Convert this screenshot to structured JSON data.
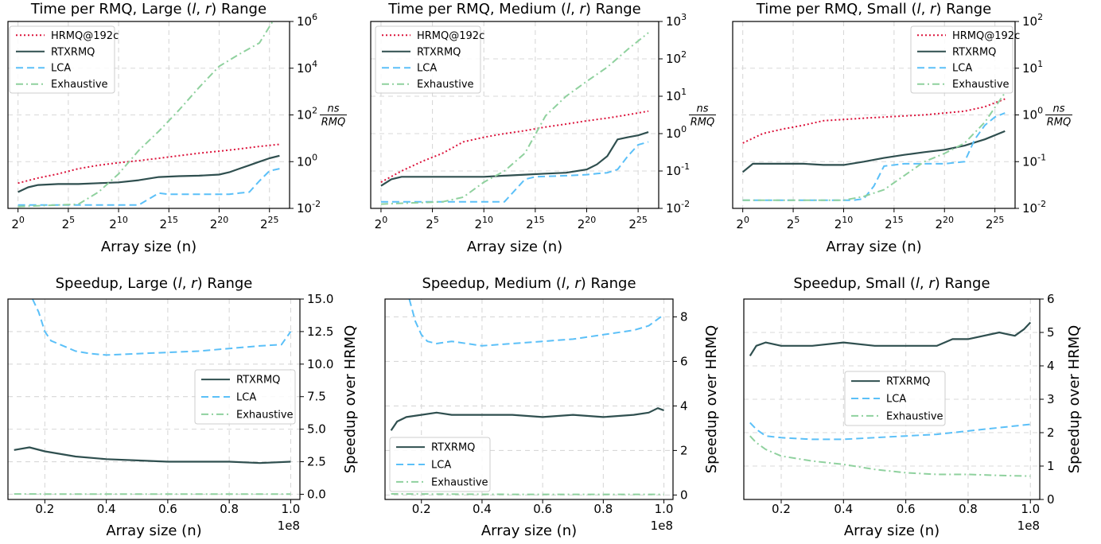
{
  "chart_data": [
    {
      "type": "line",
      "title": "Time per RMQ, Large (l, r) Range",
      "xlabel": "Array size (n)",
      "ylabel": "ns / RMQ",
      "yscale": "log",
      "xscale": "log2",
      "xticks": [
        "2^0",
        "2^5",
        "2^10",
        "2^15",
        "2^20",
        "2^25"
      ],
      "yticks": [
        "10^-2",
        "10^0",
        "10^2",
        "10^4",
        "10^6"
      ],
      "xlim": [
        -1,
        27
      ],
      "ylim": [
        0.01,
        1000000
      ],
      "legend": "top-left",
      "grid": true,
      "series": [
        {
          "name": "HRMQ@192c",
          "color": "#dc143c",
          "style": "dotted",
          "x": [
            0,
            2,
            4,
            6,
            8,
            10,
            12,
            14,
            16,
            18,
            20,
            22,
            24,
            26
          ],
          "y": [
            0.12,
            0.2,
            0.3,
            0.5,
            0.7,
            0.9,
            1.1,
            1.4,
            1.8,
            2.3,
            2.8,
            3.5,
            4.5,
            5.5
          ]
        },
        {
          "name": "RTXRMQ",
          "color": "#2f4f4f",
          "style": "solid",
          "x": [
            0,
            1,
            2,
            4,
            6,
            8,
            10,
            12,
            14,
            16,
            18,
            20,
            21,
            22,
            23,
            24,
            25,
            26
          ],
          "y": [
            0.05,
            0.08,
            0.1,
            0.11,
            0.11,
            0.12,
            0.13,
            0.16,
            0.22,
            0.24,
            0.25,
            0.28,
            0.35,
            0.5,
            0.7,
            1.0,
            1.4,
            1.8
          ]
        },
        {
          "name": "LCA",
          "color": "#5bc0f8",
          "style": "dashed",
          "x": [
            0,
            4,
            8,
            12,
            13,
            14,
            15,
            18,
            20,
            21,
            22,
            23,
            24,
            25,
            26
          ],
          "y": [
            0.014,
            0.014,
            0.014,
            0.014,
            0.025,
            0.045,
            0.04,
            0.04,
            0.04,
            0.04,
            0.045,
            0.05,
            0.15,
            0.4,
            0.5
          ]
        },
        {
          "name": "Exhaustive",
          "color": "#8fd19e",
          "style": "dashdot",
          "x": [
            0,
            6,
            8,
            10,
            12,
            14,
            16,
            18,
            20,
            22,
            24,
            26
          ],
          "y": [
            0.012,
            0.015,
            0.05,
            0.3,
            3,
            20,
            160,
            1500,
            12000,
            40000,
            120000,
            3000000
          ]
        }
      ]
    },
    {
      "type": "line",
      "title": "Time per RMQ, Medium (l, r) Range",
      "xlabel": "Array size (n)",
      "ylabel": "ns / RMQ",
      "yscale": "log",
      "xscale": "log2",
      "xticks": [
        "2^0",
        "2^5",
        "2^10",
        "2^15",
        "2^20",
        "2^25"
      ],
      "yticks": [
        "10^-2",
        "10^-1",
        "10^0",
        "10^1",
        "10^2",
        "10^3"
      ],
      "xlim": [
        -1,
        27
      ],
      "ylim": [
        0.01,
        1000
      ],
      "legend": "top-left",
      "grid": true,
      "series": [
        {
          "name": "HRMQ@192c",
          "color": "#dc143c",
          "style": "dotted",
          "x": [
            0,
            2,
            4,
            6,
            8,
            10,
            12,
            14,
            16,
            18,
            20,
            22,
            24,
            26
          ],
          "y": [
            0.05,
            0.1,
            0.18,
            0.3,
            0.6,
            0.8,
            1.0,
            1.2,
            1.5,
            1.8,
            2.2,
            2.6,
            3.2,
            4.0
          ]
        },
        {
          "name": "RTXRMQ",
          "color": "#2f4f4f",
          "style": "solid",
          "x": [
            0,
            1,
            2,
            4,
            6,
            8,
            10,
            12,
            14,
            16,
            18,
            20,
            21,
            22,
            23,
            24,
            25,
            26
          ],
          "y": [
            0.04,
            0.06,
            0.07,
            0.07,
            0.07,
            0.07,
            0.07,
            0.075,
            0.08,
            0.085,
            0.09,
            0.11,
            0.15,
            0.25,
            0.7,
            0.8,
            0.9,
            1.1
          ]
        },
        {
          "name": "LCA",
          "color": "#5bc0f8",
          "style": "dashed",
          "x": [
            0,
            4,
            8,
            12,
            13,
            14,
            15,
            18,
            20,
            21,
            22,
            23,
            24,
            25,
            26
          ],
          "y": [
            0.015,
            0.015,
            0.015,
            0.015,
            0.03,
            0.06,
            0.07,
            0.075,
            0.08,
            0.085,
            0.09,
            0.11,
            0.25,
            0.5,
            0.6
          ]
        },
        {
          "name": "Exhaustive",
          "color": "#8fd19e",
          "style": "dashdot",
          "x": [
            0,
            6,
            8,
            10,
            12,
            14,
            16,
            18,
            20,
            22,
            24,
            26
          ],
          "y": [
            0.013,
            0.015,
            0.02,
            0.05,
            0.1,
            0.3,
            3,
            10,
            25,
            60,
            180,
            500
          ]
        }
      ]
    },
    {
      "type": "line",
      "title": "Time per RMQ, Small (l, r) Range",
      "xlabel": "Array size (n)",
      "ylabel": "ns / RMQ",
      "yscale": "log",
      "xscale": "log2",
      "xticks": [
        "2^0",
        "2^5",
        "2^10",
        "2^15",
        "2^20",
        "2^25"
      ],
      "yticks": [
        "10^-2",
        "10^-1",
        "10^0",
        "10^1",
        "10^2"
      ],
      "xlim": [
        -1,
        27
      ],
      "ylim": [
        0.01,
        100
      ],
      "legend": "top-right",
      "grid": true,
      "series": [
        {
          "name": "HRMQ@192c",
          "color": "#dc143c",
          "style": "dotted",
          "x": [
            0,
            2,
            4,
            6,
            8,
            10,
            12,
            14,
            16,
            18,
            20,
            22,
            24,
            26
          ],
          "y": [
            0.25,
            0.4,
            0.5,
            0.6,
            0.75,
            0.8,
            0.85,
            0.9,
            0.95,
            1.0,
            1.1,
            1.2,
            1.5,
            2.2
          ]
        },
        {
          "name": "RTXRMQ",
          "color": "#2f4f4f",
          "style": "solid",
          "x": [
            0,
            1,
            2,
            4,
            6,
            8,
            10,
            12,
            14,
            16,
            18,
            20,
            22,
            24,
            26
          ],
          "y": [
            0.06,
            0.09,
            0.09,
            0.09,
            0.09,
            0.085,
            0.085,
            0.1,
            0.12,
            0.14,
            0.16,
            0.18,
            0.22,
            0.3,
            0.45
          ]
        },
        {
          "name": "LCA",
          "color": "#5bc0f8",
          "style": "dashed",
          "x": [
            0,
            4,
            8,
            10,
            11,
            12,
            13,
            14,
            16,
            18,
            20,
            21,
            22,
            23,
            24,
            25,
            26
          ],
          "y": [
            0.015,
            0.015,
            0.015,
            0.015,
            0.015,
            0.016,
            0.03,
            0.08,
            0.09,
            0.09,
            0.09,
            0.095,
            0.1,
            0.3,
            0.6,
            0.9,
            1.1
          ]
        },
        {
          "name": "Exhaustive",
          "color": "#8fd19e",
          "style": "dashdot",
          "x": [
            0,
            6,
            10,
            12,
            14,
            16,
            18,
            20,
            22,
            24,
            26
          ],
          "y": [
            0.015,
            0.015,
            0.015,
            0.018,
            0.025,
            0.05,
            0.1,
            0.15,
            0.25,
            0.7,
            3.0
          ]
        }
      ]
    },
    {
      "type": "line",
      "title": "Speedup, Large (l, r) Range",
      "xlabel": "Array size (n)",
      "ylabel": "Speedup over HRMQ",
      "x_multiplier": "1e8",
      "xticks": [
        "0.2",
        "0.4",
        "0.6",
        "0.8",
        "1.0"
      ],
      "yticks": [
        "0.0",
        "2.5",
        "5.0",
        "7.5",
        "10.0",
        "12.5",
        "15.0"
      ],
      "xlim": [
        0.08,
        1.03
      ],
      "ylim": [
        -0.4,
        15
      ],
      "legend": "center-right",
      "grid": true,
      "series": [
        {
          "name": "RTXRMQ",
          "color": "#2f4f4f",
          "style": "solid",
          "x": [
            0.1,
            0.15,
            0.2,
            0.3,
            0.4,
            0.5,
            0.6,
            0.7,
            0.8,
            0.9,
            1.0
          ],
          "y": [
            3.4,
            3.6,
            3.3,
            2.9,
            2.7,
            2.6,
            2.5,
            2.5,
            2.5,
            2.4,
            2.5
          ]
        },
        {
          "name": "LCA",
          "color": "#5bc0f8",
          "style": "dashed",
          "x": [
            0.16,
            0.18,
            0.2,
            0.22,
            0.25,
            0.3,
            0.35,
            0.4,
            0.5,
            0.6,
            0.7,
            0.8,
            0.9,
            0.97,
            1.0
          ],
          "y": [
            15.0,
            14.0,
            12.5,
            11.8,
            11.5,
            11.0,
            10.8,
            10.7,
            10.8,
            10.9,
            11.0,
            11.2,
            11.4,
            11.5,
            12.5
          ]
        },
        {
          "name": "Exhaustive",
          "color": "#8fd19e",
          "style": "dashdot",
          "x": [
            0.1,
            0.3,
            0.5,
            0.7,
            0.9,
            1.0
          ],
          "y": [
            0.02,
            0.01,
            0.01,
            0.01,
            0.01,
            0.01
          ]
        }
      ]
    },
    {
      "type": "line",
      "title": "Speedup, Medium (l, r) Range",
      "xlabel": "Array size (n)",
      "ylabel": "Speedup over HRMQ",
      "x_multiplier": "1e8",
      "xticks": [
        "0.2",
        "0.4",
        "0.6",
        "0.8",
        "1.0"
      ],
      "yticks": [
        "0",
        "2",
        "4",
        "6",
        "8"
      ],
      "xlim": [
        0.08,
        1.03
      ],
      "ylim": [
        -0.2,
        8.8
      ],
      "legend": "bottom-left",
      "grid": true,
      "series": [
        {
          "name": "RTXRMQ",
          "color": "#2f4f4f",
          "style": "solid",
          "x": [
            0.1,
            0.12,
            0.15,
            0.2,
            0.25,
            0.3,
            0.4,
            0.5,
            0.6,
            0.7,
            0.8,
            0.9,
            0.95,
            0.98,
            1.0
          ],
          "y": [
            2.9,
            3.3,
            3.5,
            3.6,
            3.7,
            3.6,
            3.6,
            3.6,
            3.5,
            3.6,
            3.5,
            3.6,
            3.7,
            3.9,
            3.8
          ]
        },
        {
          "name": "LCA",
          "color": "#5bc0f8",
          "style": "dashed",
          "x": [
            0.16,
            0.18,
            0.2,
            0.22,
            0.25,
            0.3,
            0.35,
            0.4,
            0.5,
            0.6,
            0.7,
            0.8,
            0.9,
            0.95,
            0.98,
            1.0
          ],
          "y": [
            8.8,
            7.8,
            7.2,
            6.9,
            6.8,
            6.9,
            6.8,
            6.7,
            6.8,
            6.9,
            7.0,
            7.2,
            7.4,
            7.6,
            7.9,
            8.1
          ]
        },
        {
          "name": "Exhaustive",
          "color": "#8fd19e",
          "style": "dashdot",
          "x": [
            0.1,
            0.3,
            0.5,
            0.7,
            0.9,
            1.0
          ],
          "y": [
            0.05,
            0.04,
            0.03,
            0.03,
            0.03,
            0.03
          ]
        }
      ]
    },
    {
      "type": "line",
      "title": "Speedup, Small (l, r) Range",
      "xlabel": "Array size (n)",
      "ylabel": "Speedup over HRMQ",
      "x_multiplier": "1e8",
      "xticks": [
        "0.2",
        "0.4",
        "0.6",
        "0.8",
        "1.0"
      ],
      "yticks": [
        "0",
        "1",
        "2",
        "3",
        "4",
        "5",
        "6"
      ],
      "xlim": [
        0.08,
        1.03
      ],
      "ylim": [
        0,
        6
      ],
      "legend": "center",
      "grid": true,
      "series": [
        {
          "name": "RTXRMQ",
          "color": "#2f4f4f",
          "style": "solid",
          "x": [
            0.1,
            0.12,
            0.15,
            0.2,
            0.3,
            0.4,
            0.5,
            0.6,
            0.7,
            0.75,
            0.8,
            0.9,
            0.95,
            0.98,
            1.0
          ],
          "y": [
            4.3,
            4.6,
            4.7,
            4.6,
            4.6,
            4.7,
            4.6,
            4.6,
            4.6,
            4.8,
            4.8,
            5.0,
            4.9,
            5.1,
            5.3
          ]
        },
        {
          "name": "LCA",
          "color": "#5bc0f8",
          "style": "dashed",
          "x": [
            0.1,
            0.12,
            0.15,
            0.2,
            0.3,
            0.4,
            0.5,
            0.6,
            0.7,
            0.8,
            0.9,
            1.0
          ],
          "y": [
            2.3,
            2.1,
            1.9,
            1.85,
            1.8,
            1.8,
            1.85,
            1.9,
            1.95,
            2.05,
            2.15,
            2.25
          ]
        },
        {
          "name": "Exhaustive",
          "color": "#8fd19e",
          "style": "dashdot",
          "x": [
            0.1,
            0.12,
            0.15,
            0.2,
            0.3,
            0.4,
            0.5,
            0.6,
            0.7,
            0.8,
            0.9,
            1.0
          ],
          "y": [
            1.9,
            1.7,
            1.5,
            1.3,
            1.15,
            1.05,
            0.9,
            0.8,
            0.75,
            0.75,
            0.72,
            0.7
          ]
        }
      ]
    }
  ]
}
